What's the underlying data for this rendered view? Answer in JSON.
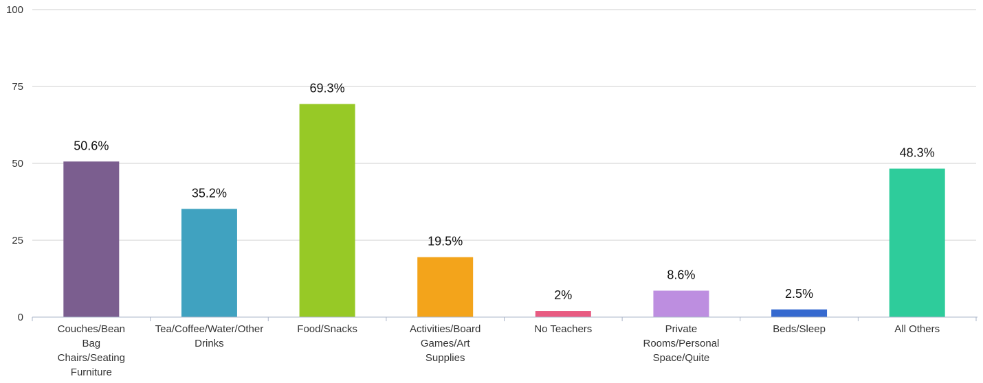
{
  "chart_data": {
    "type": "bar",
    "categories": [
      [
        "Couches/Bean",
        "Bag",
        "Chairs/Seating",
        "Furniture"
      ],
      [
        "Tea/Coffee/Water/Other",
        "Drinks"
      ],
      [
        "Food/Snacks"
      ],
      [
        "Activities/Board",
        "Games/Art",
        "Supplies"
      ],
      [
        "No Teachers"
      ],
      [
        "Private",
        "Rooms/Personal",
        "Space/Quite"
      ],
      [
        "Beds/Sleep"
      ],
      [
        "All Others"
      ]
    ],
    "values": [
      50.6,
      35.2,
      69.3,
      19.5,
      2,
      8.6,
      2.5,
      48.3
    ],
    "data_labels": [
      "50.6%",
      "35.2%",
      "69.3%",
      "19.5%",
      "2%",
      "8.6%",
      "2.5%",
      "48.3%"
    ],
    "colors": [
      "#7b5e8f",
      "#40a2c0",
      "#97c926",
      "#f3a41b",
      "#e85b82",
      "#bd8ee0",
      "#3569cf",
      "#2ecc9b"
    ],
    "ylim": [
      0,
      100
    ],
    "yticks": [
      0,
      25,
      50,
      75,
      100
    ],
    "grid": true,
    "title": "",
    "xlabel": "",
    "ylabel": ""
  }
}
